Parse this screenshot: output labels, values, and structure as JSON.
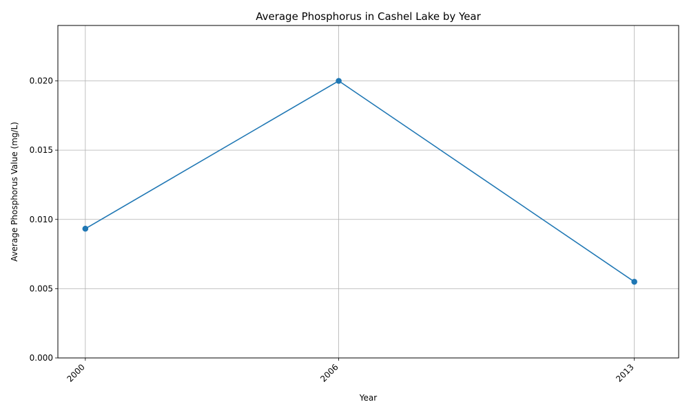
{
  "chart_data": {
    "type": "line",
    "title": "Average Phosphorus in Cashel Lake by Year",
    "xlabel": "Year",
    "ylabel": "Average Phosphorus Value (mg/L)",
    "x": [
      2000,
      2006,
      2013
    ],
    "x_tick_labels": [
      "2000",
      "2006",
      "2013"
    ],
    "xlim": [
      1999.35,
      2014.05
    ],
    "ylim": [
      0,
      0.024
    ],
    "y_ticks": [
      0,
      0.005,
      0.01,
      0.015,
      0.02
    ],
    "y_tick_labels": [
      "0.000",
      "0.005",
      "0.010",
      "0.015",
      "0.020"
    ],
    "series": [
      {
        "values": [
          0.00933,
          0.02,
          0.0055
        ],
        "color": "#1f77b4",
        "marker": "circle"
      }
    ],
    "grid": true,
    "legend": "none"
  }
}
